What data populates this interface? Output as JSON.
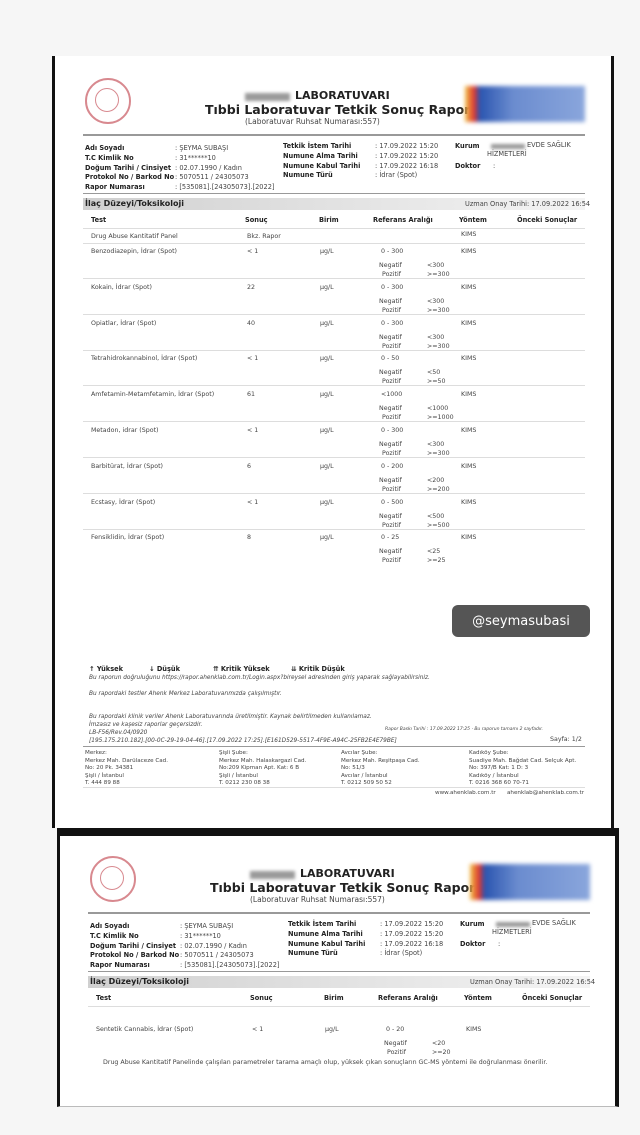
{
  "header": {
    "lab": "LABORATUVARI",
    "title": "Tıbbi Laboratuvar Tetkik Sonuç Raporu",
    "license": "(Laboratuvar Ruhsat Numarası:557)"
  },
  "patient": {
    "name_label": "Adı Soyadı",
    "name": ": ŞEYMA SUBAŞI",
    "tc_label": "T.C Kimlik No",
    "tc": ": 31******10",
    "dob_label": "Doğum Tarihi / Cinsiyet",
    "dob": ": 02.07.1990 / Kadın",
    "protocol_label": "Protokol No / Barkod No",
    "protocol": ": 5070511 / 24305073",
    "report_label": "Rapor Numarası",
    "report": ": [535081].[24305073].[2022]",
    "istem_label": "Tetkik İstem Tarihi",
    "istem": ": 17.09.2022 15:20",
    "alma_label": "Numune Alma Tarihi",
    "alma": ": 17.09.2022 15:20",
    "kabul_label": "Numune Kabul Tarihi",
    "kabul": ": 17.09.2022 16:18",
    "tur_label": "Numune Türü",
    "tur": ": İdrar (Spot)",
    "kurum_label": "Kurum",
    "kurum": "EVDE SAĞLIK",
    "kurum2": "HİZMETLERİ",
    "doktor_label": "Doktor",
    "doktor": ":"
  },
  "section": {
    "title": "İlaç Düzeyi/Toksikoloji",
    "approval": "Uzman Onay Tarihi: 17.09.2022 16:54"
  },
  "columns": [
    "Test",
    "Sonuç",
    "Birim",
    "Referans Aralığı",
    "Yöntem",
    "Önceki Sonuçlar"
  ],
  "panel": {
    "test": "Drug Abuse Kantitatif Panel",
    "result": "Bkz. Rapor",
    "method": "KIMS"
  },
  "neg_label": "Negatif",
  "pos_label": "Pozitif",
  "tests": [
    {
      "test": "Benzodiazepin, İdrar (Spot)",
      "result": "< 1",
      "unit": "µg/L",
      "range": "0 - 300",
      "neg": "<300",
      "pos": ">=300",
      "method": "KIMS"
    },
    {
      "test": "Kokain, İdrar (Spot)",
      "result": "22",
      "unit": "µg/L",
      "range": "0 - 300",
      "neg": "<300",
      "pos": ">=300",
      "method": "KIMS"
    },
    {
      "test": "Opiatlar, İdrar (Spot)",
      "result": "40",
      "unit": "µg/L",
      "range": "0 - 300",
      "neg": "<300",
      "pos": ">=300",
      "method": "KIMS"
    },
    {
      "test": "Tetrahidrokannabinol, İdrar (Spot)",
      "result": "< 1",
      "unit": "µg/L",
      "range": "0 - 50",
      "neg": "<50",
      "pos": ">=50",
      "method": "KIMS"
    },
    {
      "test": "Amfetamin-Metamfetamin, İdrar (Spot)",
      "result": "61",
      "unit": "µg/L",
      "range": "<1000",
      "neg": "<1000",
      "pos": ">=1000",
      "method": "KIMS"
    },
    {
      "test": "Metadon, idrar (Spot)",
      "result": "< 1",
      "unit": "µg/L",
      "range": "0 - 300",
      "neg": "<300",
      "pos": ">=300",
      "method": "KIMS"
    },
    {
      "test": "Barbitürat, İdrar (Spot)",
      "result": "6",
      "unit": "µg/L",
      "range": "0 - 200",
      "neg": "<200",
      "pos": ">=200",
      "method": "KIMS"
    },
    {
      "test": "Ecstasy, İdrar (Spot)",
      "result": "< 1",
      "unit": "µg/L",
      "range": "0 - 500",
      "neg": "<500",
      "pos": ">=500",
      "method": "KIMS"
    },
    {
      "test": "Fensiklidin, İdrar (Spot)",
      "result": "8",
      "unit": "µg/L",
      "range": "0 - 25",
      "neg": "<25",
      "pos": ">=25",
      "method": "KIMS"
    }
  ],
  "tests_page2": [
    {
      "test": "Sentetik Cannabis, İdrar (Spot)",
      "result": "< 1",
      "unit": "µg/L",
      "range": "0 - 20",
      "neg": "<20",
      "pos": ">=20",
      "method": "KIMS"
    }
  ],
  "watermark": "@seymasubasi",
  "legend": {
    "high": "↑ Yüksek",
    "low": "↓ Düşük",
    "crit_high": "⇈ Kritik Yüksek",
    "crit_low": "⇊ Kritik Düşük"
  },
  "footer": {
    "verify": "Bu raporun doğruluğunu https://rapor.ahenklab.com.tr/Login.aspx?bireysel adresinden giriş yaparak sağlayabilirsiniz.",
    "tested": "Bu rapordaki testler Ahenk Merkez Laboratuvarımızda çalışılmıştır.",
    "clinical": "Bu rapordaki klinik veriler Ahenk Laboratuvarında üretilmiştir. Kaynak belirtilmeden kullanılamaz.",
    "signature": "İmzasız ve kaşesiz raporlar geçersizdir.",
    "form": "LB-F56/Rev.04/0920",
    "trace": "[195.175.210.182].[00-0C-29-19-04-46].[17.09.2022 17:25].[E161D529-5517-4F9E-A94C-25FB2E4E79BE]",
    "print": "Rapor Baskı Tarihi : 17.09.2022 17:25  ·  Bu raporun tamamı 2 sayfadır.",
    "page": "Sayfa: 1/2",
    "branches": [
      [
        "Merkez:",
        "Merkez Mah. Darülaceze Cad.",
        "No: 20 Pk. 34381",
        "Şişli / İstanbul",
        "T. 444 89 88"
      ],
      [
        "Şişli Şube:",
        "Merkez Mah. Halaskargazi  Cad.",
        "No:209 Kipman Apt. Kat: 6 B",
        "Şişli / İstanbul",
        "T. 0212 230 08 38"
      ],
      [
        "Avcılar Şube:",
        "Merkez Mah. Reşitpaşa  Cad.",
        "No: 51/3",
        "Avcılar / İstanbul",
        "T. 0212 509 50 52"
      ],
      [
        "Kadıköy Şube:",
        "Suadiye Mah. Bağdat Cad. Selçuk Apt.",
        "No: 397/B Kat: 1 D: 3",
        "Kadıköy / İstanbul",
        "T. 0216 368 60 70-71"
      ]
    ],
    "web": "www.ahenklab.com.tr",
    "email": "ahenklab@ahenklab.com.tr"
  },
  "note": "Drug Abuse Kantitatif Panelinde çalışılan parametreler tarama amaçlı olup, yüksek çıkan sonuçların GC-MS yöntemi ile doğrulanması önerilir."
}
